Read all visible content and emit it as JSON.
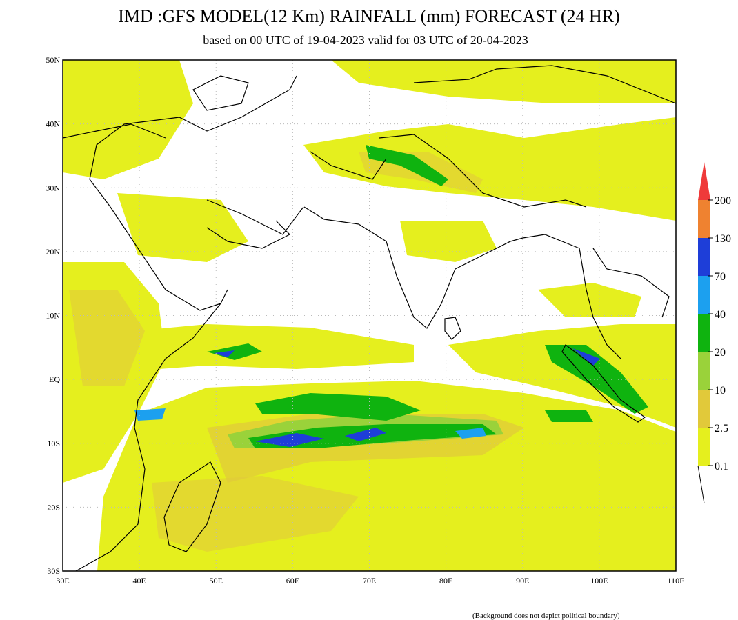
{
  "header": {
    "title": "IMD :GFS MODEL(12 Km) RAINFALL (mm) FORECAST (24 HR)",
    "subtitle": "based on 00 UTC of 19-04-2023 valid for 03 UTC of 20-04-2023"
  },
  "map": {
    "lat_labels": [
      "50N",
      "40N",
      "30N",
      "20N",
      "10N",
      "EQ",
      "10S",
      "20S",
      "30S"
    ],
    "lon_labels": [
      "30E",
      "40E",
      "50E",
      "60E",
      "70E",
      "80E",
      "90E",
      "100E",
      "110E"
    ]
  },
  "legend": {
    "labels": [
      "200",
      "130",
      "70",
      "40",
      "20",
      "10",
      "2.5",
      "0.1"
    ],
    "colors": [
      "#ef8230",
      "#1e3ed8",
      "#1ca0ef",
      "#0fb30f",
      "#9ad23a",
      "#e1c93a",
      "#e5ef1e"
    ],
    "top_color": "#ef3a3a"
  },
  "note": "(Background does not depict political boundary)"
}
